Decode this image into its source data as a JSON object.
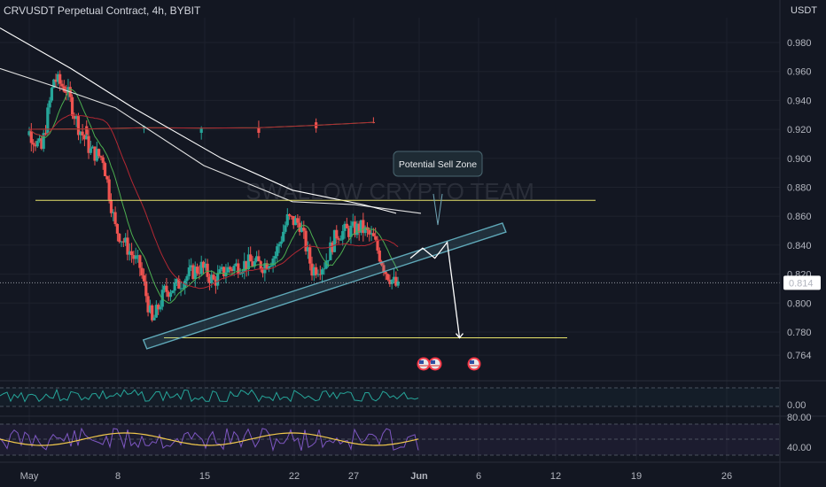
{
  "header": {
    "symbol_title": "CRVUSDT Perpetual Contract, 4h, BYBIT",
    "currency": "USDT"
  },
  "watermark": "SWALLOW CRYPTO TEAM",
  "annotation": {
    "sell_zone_label": "Potential Sell Zone"
  },
  "price_axis": {
    "ticks": [
      "0.980",
      "0.960",
      "0.940",
      "0.920",
      "0.900",
      "0.880",
      "0.860",
      "0.840",
      "0.820",
      "0.800",
      "0.780",
      "0.764"
    ],
    "current_price": "0.814"
  },
  "indicator1_axis": {
    "ticks": [
      "0.00"
    ]
  },
  "indicator2_axis": {
    "ticks": [
      "80.00",
      "40.00"
    ]
  },
  "time_axis": {
    "labels": [
      "May",
      "8",
      "15",
      "22",
      "27",
      "Jun",
      "6",
      "12",
      "19",
      "26"
    ]
  },
  "colors": {
    "background": "#131722",
    "candle_up": "#26a69a",
    "candle_down": "#ef5350",
    "ma_fast": "#4caf50",
    "ma_mid": "#b22833",
    "ma_slow": "#e0e0e0",
    "level_line": "#e8e36a",
    "channel": "#5fa8b8",
    "osc1": "#26a69a",
    "osc2_line": "#7e57c2",
    "osc2_signal": "#f2c94c"
  },
  "chart_data": {
    "type": "candlestick",
    "symbol": "CRVUSDT",
    "timeframe": "4h",
    "exchange": "BYBIT",
    "ylim": [
      0.755,
      0.995
    ],
    "horizontal_levels": [
      0.871,
      0.776
    ],
    "trendline": {
      "from": [
        "May 11",
        0.777
      ],
      "to": [
        "Jun 2",
        0.854
      ]
    },
    "projection": [
      {
        "date": "Jun 1",
        "price": 0.831
      },
      {
        "date": "Jun 2",
        "price": 0.838
      },
      {
        "date": "Jun 3",
        "price": 0.831
      },
      {
        "date": "Jun 4",
        "price": 0.842
      },
      {
        "date": "Jun 5",
        "price": 0.776
      }
    ],
    "current_price": 0.814,
    "path": [
      [
        "Apr 30",
        0.925
      ],
      [
        "May 1",
        0.918
      ],
      [
        "May 2",
        0.906
      ],
      [
        "May 3",
        0.955
      ],
      [
        "May 4",
        0.948
      ],
      [
        "May 5",
        0.922
      ],
      [
        "May 6",
        0.905
      ],
      [
        "May 7",
        0.9
      ],
      [
        "May 8",
        0.852
      ],
      [
        "May 9",
        0.838
      ],
      [
        "May 10",
        0.825
      ],
      [
        "May 11",
        0.786
      ],
      [
        "May 12",
        0.808
      ],
      [
        "May 13",
        0.812
      ],
      [
        "May 14",
        0.82
      ],
      [
        "May 15",
        0.825
      ],
      [
        "May 16",
        0.815
      ],
      [
        "May 17",
        0.823
      ],
      [
        "May 18",
        0.826
      ],
      [
        "May 19",
        0.828
      ],
      [
        "May 20",
        0.826
      ],
      [
        "May 21",
        0.833
      ],
      [
        "May 22",
        0.858
      ],
      [
        "May 23",
        0.855
      ],
      [
        "May 24",
        0.823
      ],
      [
        "May 25",
        0.827
      ],
      [
        "May 26",
        0.848
      ],
      [
        "May 27",
        0.85
      ],
      [
        "May 28",
        0.852
      ],
      [
        "May 29",
        0.844
      ],
      [
        "May 30",
        0.822
      ],
      [
        "May 31",
        0.81
      ]
    ]
  }
}
